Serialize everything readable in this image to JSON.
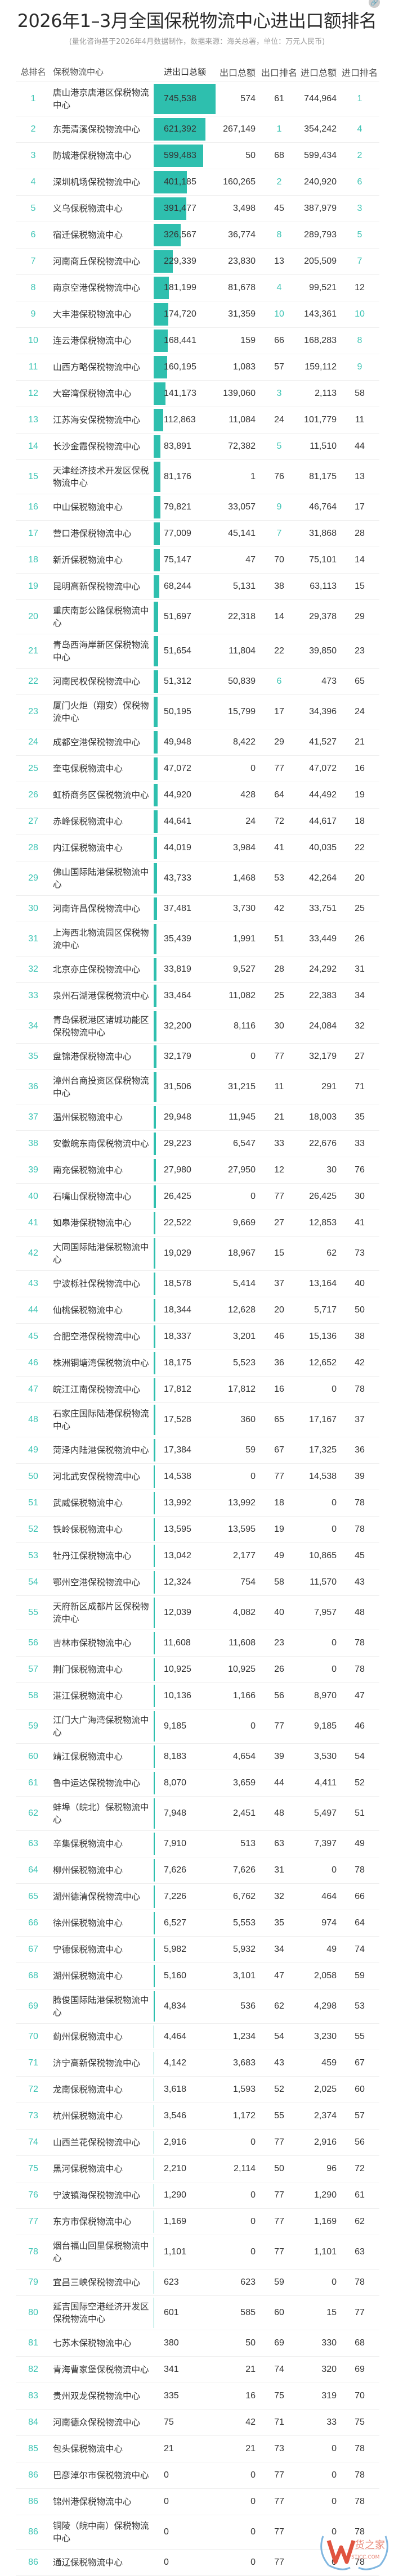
{
  "title": "2026年1–3月全国保税物流中心进出口额排名",
  "subtitle": "(量化咨询基于2026年4月数据制作，数据来源：海关总署，单位：万元人民币)",
  "colors": {
    "accent": "#2ebfae",
    "accent_text": "#3dc4b4"
  },
  "icons": {
    "top_right": "link-icon"
  },
  "headers": [
    "总排名",
    "保税物流中心",
    "进出口总额",
    "出口总额",
    "出口排名",
    "进口总额",
    "进口排名"
  ],
  "rows": [
    [
      "1",
      "唐山港京唐港区保税物流中心",
      "745,538",
      "574",
      "61",
      "744,964",
      "1"
    ],
    [
      "2",
      "东莞清溪保税物流中心",
      "621,392",
      "267,149",
      "1",
      "354,242",
      "4"
    ],
    [
      "3",
      "防城港保税物流中心",
      "599,483",
      "50",
      "68",
      "599,434",
      "2"
    ],
    [
      "4",
      "深圳机场保税物流中心",
      "401,185",
      "160,265",
      "2",
      "240,920",
      "6"
    ],
    [
      "5",
      "义乌保税物流中心",
      "391,477",
      "3,498",
      "45",
      "387,979",
      "3"
    ],
    [
      "6",
      "宿迁保税物流中心",
      "326,567",
      "36,774",
      "8",
      "289,793",
      "5"
    ],
    [
      "7",
      "河南商丘保税物流中心",
      "229,339",
      "23,830",
      "13",
      "205,509",
      "7"
    ],
    [
      "8",
      "南京空港保税物流中心",
      "181,199",
      "81,678",
      "4",
      "99,521",
      "12"
    ],
    [
      "9",
      "大丰港保税物流中心",
      "174,720",
      "31,359",
      "10",
      "143,361",
      "10"
    ],
    [
      "10",
      "连云港保税物流中心",
      "168,441",
      "159",
      "66",
      "168,283",
      "8"
    ],
    [
      "11",
      "山西方略保税物流中心",
      "160,195",
      "1,083",
      "57",
      "159,112",
      "9"
    ],
    [
      "12",
      "大窑湾保税物流中心",
      "141,173",
      "139,060",
      "3",
      "2,113",
      "58"
    ],
    [
      "13",
      "江苏海安保税物流中心",
      "112,863",
      "11,084",
      "24",
      "101,779",
      "11"
    ],
    [
      "14",
      "长沙金霞保税物流中心",
      "83,891",
      "72,382",
      "5",
      "11,510",
      "44"
    ],
    [
      "15",
      "天津经济技术开发区保税物流中心",
      "81,176",
      "1",
      "76",
      "81,175",
      "13"
    ],
    [
      "16",
      "中山保税物流中心",
      "79,821",
      "33,057",
      "9",
      "46,764",
      "17"
    ],
    [
      "17",
      "营口港保税物流中心",
      "77,009",
      "45,141",
      "7",
      "31,868",
      "28"
    ],
    [
      "18",
      "新沂保税物流中心",
      "75,147",
      "47",
      "70",
      "75,101",
      "14"
    ],
    [
      "19",
      "昆明高新保税物流中心",
      "68,244",
      "5,131",
      "38",
      "63,113",
      "15"
    ],
    [
      "20",
      "重庆南彭公路保税物流中心",
      "51,697",
      "22,318",
      "14",
      "29,378",
      "29"
    ],
    [
      "21",
      "青岛西海岸新区保税物流中心",
      "51,654",
      "11,804",
      "22",
      "39,850",
      "23"
    ],
    [
      "22",
      "河南民权保税物流中心",
      "51,312",
      "50,839",
      "6",
      "473",
      "65"
    ],
    [
      "23",
      "厦门火炬（翔安）保税物流中心",
      "50,195",
      "15,799",
      "17",
      "34,396",
      "24"
    ],
    [
      "24",
      "成都空港保税物流中心",
      "49,948",
      "8,422",
      "29",
      "41,527",
      "21"
    ],
    [
      "25",
      "奎屯保税物流中心",
      "47,072",
      "0",
      "77",
      "47,072",
      "16"
    ],
    [
      "26",
      "虹桥商务区保税物流中心",
      "44,920",
      "428",
      "64",
      "44,492",
      "19"
    ],
    [
      "27",
      "赤峰保税物流中心",
      "44,641",
      "24",
      "72",
      "44,617",
      "18"
    ],
    [
      "28",
      "内江保税物流中心",
      "44,019",
      "3,984",
      "41",
      "40,035",
      "22"
    ],
    [
      "29",
      "佛山国际陆港保税物流中心",
      "43,733",
      "1,468",
      "53",
      "42,264",
      "20"
    ],
    [
      "30",
      "河南许昌保税物流中心",
      "37,481",
      "3,730",
      "42",
      "33,751",
      "25"
    ],
    [
      "31",
      "上海西北物流园区保税物流中心",
      "35,439",
      "1,991",
      "51",
      "33,449",
      "26"
    ],
    [
      "32",
      "北京亦庄保税物流中心",
      "33,819",
      "9,527",
      "28",
      "24,292",
      "31"
    ],
    [
      "33",
      "泉州石湖港保税物流中心",
      "33,464",
      "11,082",
      "25",
      "22,383",
      "34"
    ],
    [
      "34",
      "青岛保税港区诸城功能区保税物流中心",
      "32,200",
      "8,116",
      "30",
      "24,084",
      "32"
    ],
    [
      "35",
      "盘锦港保税物流中心",
      "32,179",
      "0",
      "77",
      "32,179",
      "27"
    ],
    [
      "36",
      "漳州台商投资区保税物流中心",
      "31,506",
      "31,215",
      "11",
      "291",
      "71"
    ],
    [
      "37",
      "温州保税物流中心",
      "29,948",
      "11,945",
      "21",
      "18,003",
      "35"
    ],
    [
      "38",
      "安徽皖东南保税物流中心",
      "29,223",
      "6,547",
      "33",
      "22,676",
      "33"
    ],
    [
      "39",
      "南充保税物流中心",
      "27,980",
      "27,950",
      "12",
      "30",
      "76"
    ],
    [
      "40",
      "石嘴山保税物流中心",
      "26,425",
      "0",
      "77",
      "26,425",
      "30"
    ],
    [
      "41",
      "如皋港保税物流中心",
      "22,522",
      "9,669",
      "27",
      "12,853",
      "41"
    ],
    [
      "42",
      "大同国际陆港保税物流中心",
      "19,029",
      "18,967",
      "15",
      "62",
      "73"
    ],
    [
      "43",
      "宁波栎社保税物流中心",
      "18,578",
      "5,414",
      "37",
      "13,164",
      "40"
    ],
    [
      "44",
      "仙桃保税物流中心",
      "18,344",
      "12,628",
      "20",
      "5,717",
      "50"
    ],
    [
      "45",
      "合肥空港保税物流中心",
      "18,337",
      "3,201",
      "46",
      "15,136",
      "38"
    ],
    [
      "46",
      "株洲铜塘湾保税物流中心",
      "18,175",
      "5,523",
      "36",
      "12,652",
      "42"
    ],
    [
      "47",
      "皖江江南保税物流中心",
      "17,812",
      "17,812",
      "16",
      "0",
      "78"
    ],
    [
      "48",
      "石家庄国际陆港保税物流中心",
      "17,528",
      "360",
      "65",
      "17,167",
      "37"
    ],
    [
      "49",
      "菏泽内陆港保税物流中心",
      "17,384",
      "59",
      "67",
      "17,325",
      "36"
    ],
    [
      "50",
      "河北武安保税物流中心",
      "14,538",
      "0",
      "77",
      "14,538",
      "39"
    ],
    [
      "51",
      "武威保税物流中心",
      "13,992",
      "13,992",
      "18",
      "0",
      "78"
    ],
    [
      "52",
      "铁岭保税物流中心",
      "13,595",
      "13,595",
      "19",
      "0",
      "78"
    ],
    [
      "53",
      "牡丹江保税物流中心",
      "13,042",
      "2,177",
      "49",
      "10,865",
      "45"
    ],
    [
      "54",
      "鄂州空港保税物流中心",
      "12,324",
      "754",
      "58",
      "11,570",
      "43"
    ],
    [
      "55",
      "天府新区成都片区保税物流中心",
      "12,039",
      "4,082",
      "40",
      "7,957",
      "48"
    ],
    [
      "56",
      "吉林市保税物流中心",
      "11,608",
      "11,608",
      "23",
      "0",
      "78"
    ],
    [
      "57",
      "荆门保税物流中心",
      "10,925",
      "10,925",
      "26",
      "0",
      "78"
    ],
    [
      "58",
      "湛江保税物流中心",
      "10,136",
      "1,166",
      "56",
      "8,970",
      "47"
    ],
    [
      "59",
      "江门大广海湾保税物流中心",
      "9,185",
      "0",
      "77",
      "9,185",
      "46"
    ],
    [
      "60",
      "靖江保税物流中心",
      "8,183",
      "4,654",
      "39",
      "3,530",
      "54"
    ],
    [
      "61",
      "鲁中运达保税物流中心",
      "8,070",
      "3,659",
      "44",
      "4,411",
      "52"
    ],
    [
      "62",
      "蚌埠（皖北）保税物流中心",
      "7,948",
      "2,451",
      "48",
      "5,497",
      "51"
    ],
    [
      "63",
      "辛集保税物流中心",
      "7,910",
      "513",
      "63",
      "7,397",
      "49"
    ],
    [
      "64",
      "柳州保税物流中心",
      "7,626",
      "7,626",
      "31",
      "0",
      "78"
    ],
    [
      "65",
      "湖州德清保税物流中心",
      "7,226",
      "6,762",
      "32",
      "464",
      "66"
    ],
    [
      "66",
      "徐州保税物流中心",
      "6,527",
      "5,553",
      "35",
      "974",
      "64"
    ],
    [
      "67",
      "宁德保税物流中心",
      "5,982",
      "5,932",
      "34",
      "49",
      "74"
    ],
    [
      "68",
      "湖州保税物流中心",
      "5,160",
      "3,101",
      "47",
      "2,058",
      "59"
    ],
    [
      "69",
      "腾俊国际陆港保税物流中心",
      "4,834",
      "536",
      "62",
      "4,298",
      "53"
    ],
    [
      "70",
      "蓟州保税物流中心",
      "4,464",
      "1,234",
      "54",
      "3,230",
      "55"
    ],
    [
      "71",
      "济宁高新保税物流中心",
      "4,142",
      "3,683",
      "43",
      "459",
      "67"
    ],
    [
      "72",
      "龙南保税物流中心",
      "3,618",
      "1,593",
      "52",
      "2,025",
      "60"
    ],
    [
      "73",
      "杭州保税物流中心",
      "3,546",
      "1,172",
      "55",
      "2,374",
      "57"
    ],
    [
      "74",
      "山西兰花保税物流中心",
      "2,916",
      "0",
      "77",
      "2,916",
      "56"
    ],
    [
      "75",
      "黑河保税物流中心",
      "2,210",
      "2,114",
      "50",
      "96",
      "72"
    ],
    [
      "76",
      "宁波镇海保税物流中心",
      "1,290",
      "0",
      "77",
      "1,290",
      "61"
    ],
    [
      "77",
      "东方市保税物流中心",
      "1,169",
      "0",
      "77",
      "1,169",
      "62"
    ],
    [
      "78",
      "烟台福山回里保税物流中心",
      "1,101",
      "0",
      "77",
      "1,101",
      "63"
    ],
    [
      "79",
      "宜昌三峡保税物流中心",
      "623",
      "623",
      "59",
      "0",
      "78"
    ],
    [
      "80",
      "延吉国际空港经济开发区保税物流中心",
      "601",
      "585",
      "60",
      "15",
      "77"
    ],
    [
      "81",
      "七苏木保税物流中心",
      "380",
      "50",
      "69",
      "330",
      "68"
    ],
    [
      "82",
      "青海曹家堡保税物流中心",
      "341",
      "21",
      "74",
      "320",
      "69"
    ],
    [
      "83",
      "贵州双龙保税物流中心",
      "335",
      "16",
      "75",
      "319",
      "70"
    ],
    [
      "84",
      "河南德众保税物流中心",
      "75",
      "42",
      "71",
      "33",
      "75"
    ],
    [
      "85",
      "包头保税物流中心",
      "21",
      "21",
      "73",
      "0",
      "78"
    ],
    [
      "86",
      "巴彦淖尔市保税物流中心",
      "0",
      "0",
      "77",
      "0",
      "78"
    ],
    [
      "86",
      "锦州港保税物流中心",
      "0",
      "0",
      "77",
      "0",
      "78"
    ],
    [
      "86",
      "铜陵（皖中南）保税物流中心",
      "0",
      "0",
      "77",
      "0",
      "78"
    ],
    [
      "86",
      "通辽保税物流中心",
      "0",
      "0",
      "77",
      "0",
      "78"
    ]
  ],
  "logo": {
    "text_cn": "货之家",
    "text_en": "STJCC.COM"
  }
}
